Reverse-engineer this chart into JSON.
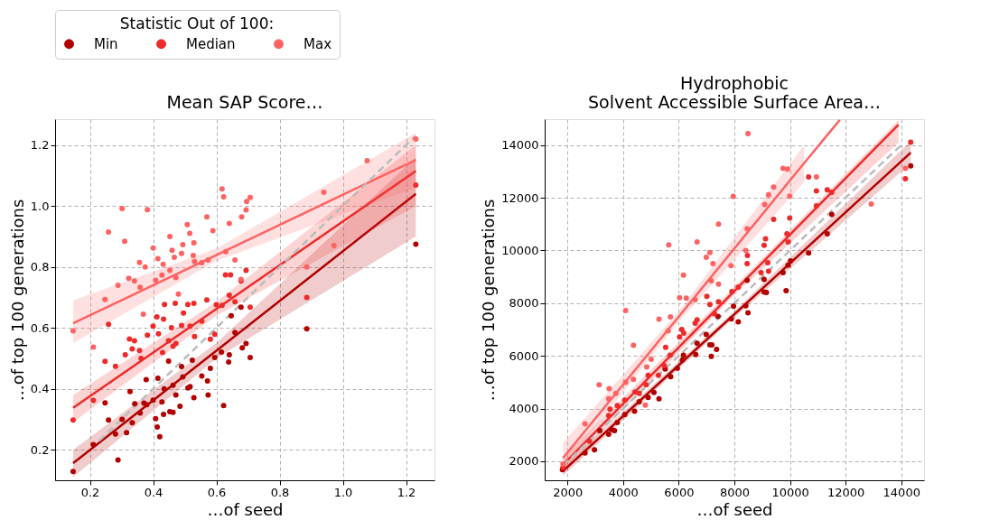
{
  "chart_data": [
    {
      "type": "scatter",
      "title": "Mean SAP Score…",
      "xlabel": "…of seed",
      "ylabel": "…of top 100 generations",
      "xlim": [
        0.09,
        1.29
      ],
      "ylim": [
        0.1,
        1.285
      ],
      "xticks": [
        0.2,
        0.4,
        0.6,
        0.8,
        {
          "value": 1.0,
          "label": "1.0"
        },
        1.2
      ],
      "yticks": [
        0.2,
        0.4,
        0.6,
        0.8,
        {
          "value": 1.0,
          "label": "1.0"
        },
        1.2
      ],
      "grid": true,
      "legend": "top",
      "legend_title": "Statistic Out of 100:",
      "series": [
        {
          "type": "scatter",
          "marker": "circle",
          "name": "Min",
          "color": "#b20000",
          "x": [
            0.147,
            0.211,
            0.248,
            0.259,
            0.281,
            0.289,
            0.302,
            0.316,
            0.327,
            0.334,
            0.342,
            0.359,
            0.371,
            0.378,
            0.38,
            0.4,
            0.408,
            0.413,
            0.421,
            0.415,
            0.428,
            0.433,
            0.435,
            0.449,
            0.453,
            0.463,
            0.463,
            0.472,
            0.485,
            0.49,
            0.494,
            0.51,
            0.517,
            0.524,
            0.529,
            0.554,
            0.572,
            0.574,
            0.581,
            0.595,
            0.616,
            0.623,
            0.639,
            0.641,
            0.647,
            0.659,
            0.678,
            0.682,
            0.694,
            0.707,
            0.886,
            1.231
          ],
          "values": [
            0.129,
            0.217,
            0.354,
            0.298,
            0.252,
            0.167,
            0.3,
            0.256,
            0.391,
            0.289,
            0.351,
            0.321,
            0.353,
            0.43,
            0.348,
            0.363,
            0.302,
            0.275,
            0.243,
            0.435,
            0.357,
            0.316,
            0.4,
            0.491,
            0.325,
            0.323,
            0.412,
            0.38,
            0.343,
            0.473,
            0.439,
            0.403,
            0.407,
            0.494,
            0.371,
            0.442,
            0.426,
            0.38,
            0.467,
            0.503,
            0.521,
            0.345,
            0.488,
            0.512,
            0.64,
            0.585,
            0.668,
            0.535,
            0.549,
            0.503,
            0.597,
            0.875
          ]
        },
        {
          "type": "scatter",
          "marker": "circle",
          "name": "Median",
          "color": "#ee2a2a",
          "x": [
            0.147,
            0.211,
            0.248,
            0.259,
            0.281,
            0.312,
            0.325,
            0.341,
            0.334,
            0.357,
            0.362,
            0.382,
            0.4,
            0.412,
            0.417,
            0.43,
            0.433,
            0.436,
            0.449,
            0.458,
            0.463,
            0.47,
            0.472,
            0.49,
            0.496,
            0.51,
            0.517,
            0.529,
            0.531,
            0.554,
            0.57,
            0.581,
            0.595,
            0.6,
            0.618,
            0.629,
            0.645,
            0.641,
            0.659,
            0.678,
            0.694,
            0.707,
            0.886,
            1.231
          ],
          "values": [
            0.298,
            0.362,
            0.49,
            0.612,
            0.474,
            0.512,
            0.564,
            0.558,
            0.531,
            0.526,
            0.5,
            0.576,
            0.606,
            0.636,
            0.581,
            0.519,
            0.629,
            0.677,
            0.558,
            0.601,
            0.54,
            0.681,
            0.549,
            0.608,
            0.649,
            0.677,
            0.606,
            0.681,
            0.572,
            0.622,
            0.692,
            0.563,
            0.579,
            0.676,
            0.674,
            0.774,
            0.774,
            0.707,
            0.686,
            0.754,
            0.789,
            0.668,
            0.7,
            1.069
          ]
        },
        {
          "type": "scatter",
          "marker": "circle",
          "name": "Max",
          "color": "#ff6262",
          "x": [
            0.147,
            0.211,
            0.248,
            0.259,
            0.302,
            0.31,
            0.289,
            0.323,
            0.341,
            0.357,
            0.359,
            0.375,
            0.382,
            0.369,
            0.4,
            0.408,
            0.415,
            0.428,
            0.432,
            0.453,
            0.453,
            0.46,
            0.467,
            0.472,
            0.48,
            0.49,
            0.494,
            0.508,
            0.516,
            0.529,
            0.527,
            0.531,
            0.554,
            0.57,
            0.574,
            0.589,
            0.618,
            0.623,
            0.63,
            0.641,
            0.659,
            0.678,
            0.68,
            0.694,
            0.696,
            0.707,
            0.886,
            0.94,
            0.972,
            1.077,
            1.231
          ],
          "values": [
            0.59,
            0.537,
            0.693,
            0.915,
            0.992,
            0.884,
            0.74,
            0.763,
            0.754,
            0.815,
            0.733,
            0.8,
            0.988,
            0.645,
            0.862,
            0.756,
            0.827,
            0.773,
            0.809,
            0.9,
            0.789,
            0.855,
            0.832,
            0.765,
            0.711,
            0.844,
            0.873,
            0.939,
            0.91,
            0.879,
            0.838,
            0.818,
            0.814,
            0.964,
            0.823,
            0.919,
            1.056,
            1.03,
            0.85,
            0.943,
            0.823,
            0.759,
            0.964,
            0.987,
            1.015,
            1.028,
            0.8,
            1.045,
            0.87,
            1.149,
            1.22
          ]
        },
        {
          "type": "line",
          "color": "#b20000",
          "x": [
            0.147,
            0.6,
            1.231
          ],
          "values": [
            0.156,
            0.525,
            1.04
          ],
          "lower": [
            0.11,
            0.5,
            0.9
          ],
          "upper": [
            0.2,
            0.55,
            1.16
          ]
        },
        {
          "type": "line",
          "color": "#ee2a2a",
          "x": [
            0.147,
            0.6,
            1.231
          ],
          "values": [
            0.338,
            0.662,
            1.115
          ],
          "lower": [
            0.29,
            0.64,
            1.0
          ],
          "upper": [
            0.38,
            0.685,
            1.2
          ]
        },
        {
          "type": "line",
          "color": "#ff6262",
          "x": [
            0.147,
            0.6,
            1.231
          ],
          "values": [
            0.615,
            0.839,
            1.151
          ],
          "lower": [
            0.55,
            0.82,
            1.06
          ],
          "upper": [
            0.69,
            0.86,
            1.24
          ]
        },
        {
          "type": "line",
          "color": "#bbbbbb",
          "line_style": "dashed",
          "x": [
            0.23,
            1.23
          ],
          "values": [
            0.23,
            1.23
          ]
        }
      ]
    },
    {
      "type": "scatter",
      "title": "Hydrophobic\nSolvent Accessible Surface Area…",
      "xlabel": "…of seed",
      "ylabel": "…of top 100 generations",
      "xlim": [
        1180,
        14820
      ],
      "ylim": [
        1280,
        14980
      ],
      "xticks": [
        2000,
        4000,
        6000,
        8000,
        10000,
        12000,
        14000
      ],
      "yticks": [
        2000,
        4000,
        6000,
        8000,
        10000,
        12000,
        14000
      ],
      "grid": true,
      "series": [
        {
          "type": "scatter",
          "marker": "circle",
          "color": "#b20000",
          "x": [
            1820,
            2630,
            2970,
            3160,
            3480,
            3580,
            3690,
            3790,
            4060,
            4410,
            4580,
            4900,
            5110,
            5290,
            5510,
            5710,
            5950,
            6130,
            6170,
            6610,
            6660,
            6990,
            7120,
            7190,
            7170,
            7360,
            7410,
            7890,
            7970,
            8140,
            8410,
            8490,
            8460,
            9070,
            9070,
            9150,
            9750,
            9860,
            9930,
            10020,
            10670,
            11340,
            11500,
            14340
          ],
          "values": [
            1680,
            2320,
            2440,
            3160,
            3030,
            3210,
            3160,
            3470,
            3770,
            3900,
            4260,
            4420,
            4610,
            4370,
            5500,
            5210,
            5530,
            5840,
            6020,
            6050,
            6480,
            6810,
            6420,
            6420,
            5980,
            6250,
            7500,
            7400,
            7880,
            7290,
            7900,
            7630,
            8870,
            8900,
            8420,
            8400,
            9160,
            8470,
            9440,
            9600,
            9900,
            10630,
            11370,
            13210
          ]
        },
        {
          "type": "scatter",
          "marker": "circle",
          "color": "#ee2a2a",
          "x": [
            1840,
            2790,
            3480,
            3530,
            3790,
            4060,
            4430,
            4580,
            4830,
            4900,
            5270,
            5480,
            5530,
            5690,
            6030,
            6110,
            6180,
            6590,
            6660,
            7010,
            7120,
            7280,
            7430,
            7910,
            8140,
            8470,
            8460,
            8960,
            9070,
            9120,
            9200,
            9230,
            9410,
            9890,
            9930,
            9990,
            10670,
            10950,
            10950,
            11340,
            11500,
            14150,
            14340
          ],
          "values": [
            1770,
            2760,
            3740,
            3980,
            4110,
            4320,
            4630,
            4580,
            4900,
            5260,
            5260,
            5630,
            6320,
            6020,
            6720,
            7000,
            6860,
            7240,
            7370,
            8260,
            7950,
            7600,
            8050,
            8440,
            8610,
            9810,
            9500,
            9160,
            10190,
            10440,
            9530,
            9210,
            11180,
            10630,
            10320,
            11230,
            12790,
            12260,
            11690,
            12300,
            12210,
            12720,
            14110
          ]
        },
        {
          "type": "scatter",
          "marker": "circle",
          "color": "#ff6262",
          "x": [
            1840,
            2630,
            3140,
            3500,
            3480,
            3740,
            4090,
            4090,
            4370,
            4370,
            4800,
            4850,
            5010,
            5290,
            5640,
            5700,
            5620,
            6030,
            6170,
            6270,
            6590,
            6660,
            6990,
            7120,
            7230,
            7170,
            7430,
            7430,
            7880,
            7960,
            8410,
            8460,
            8490,
            9090,
            9230,
            9410,
            9750,
            9910,
            9990,
            10950,
            12920,
            14150
          ],
          "values": [
            1900,
            3420,
            4900,
            4760,
            4370,
            4580,
            5000,
            7720,
            6400,
            5110,
            4130,
            5580,
            5870,
            7390,
            10210,
            7480,
            6950,
            8210,
            9060,
            8190,
            8130,
            10320,
            9740,
            9920,
            9500,
            8850,
            11000,
            8720,
            9420,
            12050,
            10000,
            10820,
            14430,
            11740,
            12110,
            12400,
            13110,
            13090,
            12060,
            12790,
            11760,
            13110
          ]
        },
        {
          "type": "line",
          "color": "#b20000",
          "x": [
            1840,
            8000,
            14340
          ],
          "values": [
            1630,
            7580,
            13710
          ],
          "lower": [
            1450,
            7450,
            13300
          ],
          "upper": [
            1800,
            7700,
            14150
          ]
        },
        {
          "type": "line",
          "color": "#ee2a2a",
          "x": [
            1840,
            8000,
            13900
          ],
          "values": [
            1870,
            8460,
            14770
          ],
          "lower": [
            1600,
            8300,
            14100
          ],
          "upper": [
            2150,
            8620,
            14950
          ]
        },
        {
          "type": "line",
          "color": "#ff6262",
          "x": [
            1840,
            6000,
            10500,
            11790
          ],
          "values": [
            2130,
            7490,
            13300,
            14950
          ],
          "lower": [
            1750,
            7290,
            12585,
            null
          ],
          "upper": [
            2700,
            7690,
            13985,
            null
          ]
        },
        {
          "type": "line",
          "color": "#bbbbbb",
          "line_style": "dashed",
          "x": [
            1840,
            14030
          ],
          "values": [
            1840,
            14030
          ]
        }
      ]
    }
  ]
}
